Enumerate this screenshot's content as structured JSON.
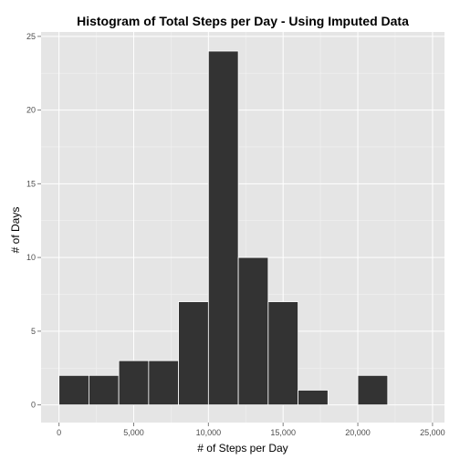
{
  "chart_data": {
    "type": "bar",
    "title": "Histogram of Total Steps per Day - Using Imputed Data",
    "xlabel": "# of Steps per Day",
    "ylabel": "# of Days",
    "bin_width": 2000,
    "bins": [
      {
        "start": 0,
        "end": 2000,
        "count": 2
      },
      {
        "start": 2000,
        "end": 4000,
        "count": 2
      },
      {
        "start": 4000,
        "end": 6000,
        "count": 3
      },
      {
        "start": 6000,
        "end": 8000,
        "count": 3
      },
      {
        "start": 8000,
        "end": 10000,
        "count": 7
      },
      {
        "start": 10000,
        "end": 12000,
        "count": 24
      },
      {
        "start": 12000,
        "end": 14000,
        "count": 10
      },
      {
        "start": 14000,
        "end": 16000,
        "count": 7
      },
      {
        "start": 16000,
        "end": 18000,
        "count": 1
      },
      {
        "start": 18000,
        "end": 20000,
        "count": 0
      },
      {
        "start": 20000,
        "end": 22000,
        "count": 2
      }
    ],
    "xlim": [
      -1200,
      25800
    ],
    "ylim": [
      -1.2,
      25.3
    ],
    "x_ticks": [
      0,
      5000,
      10000,
      15000,
      20000,
      25000
    ],
    "x_tick_labels": [
      "0",
      "5,000",
      "10,000",
      "15,000",
      "20,000",
      "25,000"
    ],
    "y_ticks": [
      0,
      5,
      10,
      15,
      20,
      25
    ],
    "y_tick_labels": [
      "0",
      "5",
      "10",
      "15",
      "20",
      "25"
    ],
    "grid": true,
    "colors": {
      "panel": "#e5e5e5",
      "grid_major": "#ffffff",
      "grid_minor": "#f2f2f2",
      "bar_fill": "#333333",
      "bar_edge": "#ffffff",
      "tick": "#7f7f7f"
    }
  }
}
